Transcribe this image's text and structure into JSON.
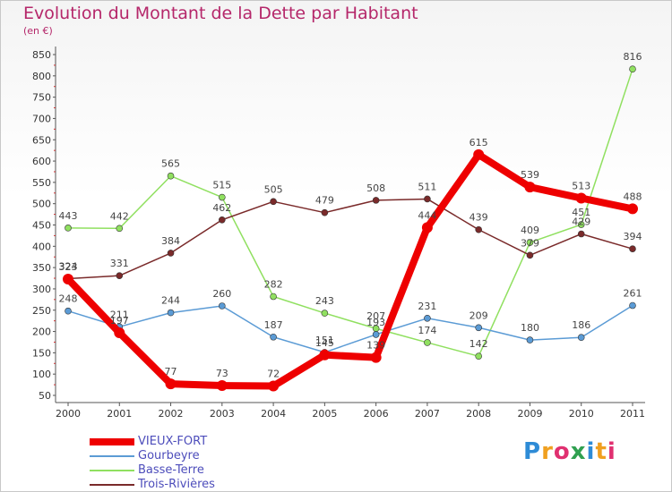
{
  "title": "Evolution du Montant de la Dette par Habitant",
  "subtitle": "(en €)",
  "logo_text": "Proxiti",
  "chart_data": {
    "type": "line",
    "title": "Evolution du Montant de la Dette par Habitant",
    "subtitle": "(en €)",
    "xlabel": "",
    "ylabel": "",
    "categories": [
      "2000",
      "2001",
      "2002",
      "2003",
      "2004",
      "2005",
      "2006",
      "2007",
      "2008",
      "2009",
      "2010",
      "2011"
    ],
    "ylim": [
      50,
      850
    ],
    "yticks": [
      50,
      100,
      150,
      200,
      250,
      300,
      350,
      400,
      450,
      500,
      550,
      600,
      650,
      700,
      750,
      800,
      850
    ],
    "grid": false,
    "legend_position": "bottom-left",
    "series": [
      {
        "name": "VIEUX-FORT",
        "color": "#ee0000",
        "values": [
          323,
          197,
          77,
          73,
          72,
          145,
          139,
          444,
          615,
          539,
          513,
          488
        ],
        "labels": [
          "323",
          "197",
          "77",
          "73",
          "72",
          "145",
          "139",
          "444",
          "615",
          "539",
          "513",
          "488"
        ]
      },
      {
        "name": "Gourbeyre",
        "color": "#5b9bd5",
        "values": [
          248,
          211,
          244,
          260,
          187,
          151,
          193,
          231,
          209,
          180,
          186,
          261
        ],
        "labels": [
          "248",
          "211",
          "244",
          "260",
          "187",
          "151",
          "193",
          "231",
          "209",
          "180",
          "186",
          "261"
        ]
      },
      {
        "name": "Basse-Terre",
        "color": "#90e060",
        "values": [
          443,
          442,
          565,
          515,
          282,
          243,
          207,
          174,
          142,
          409,
          451,
          816
        ],
        "labels": [
          "443",
          "442",
          "565",
          "515",
          "282",
          "243",
          "207",
          "174",
          "142",
          "409",
          "451",
          "816"
        ]
      },
      {
        "name": "Trois-Rivières",
        "color": "#7a2a2a",
        "values": [
          324,
          331,
          384,
          462,
          505,
          479,
          508,
          511,
          439,
          379,
          429,
          394
        ],
        "labels": [
          "324",
          "331",
          "384",
          "462",
          "505",
          "479",
          "508",
          "511",
          "439",
          "379",
          "429",
          "394"
        ]
      }
    ]
  }
}
